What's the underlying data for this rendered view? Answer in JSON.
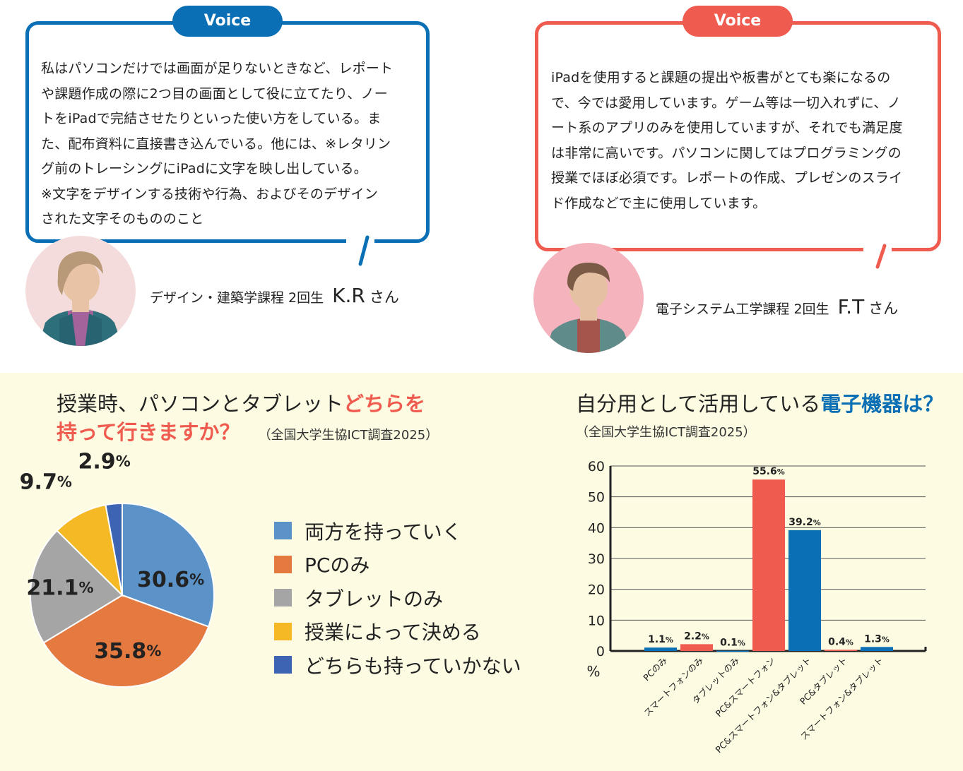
{
  "voices": [
    {
      "badge": "Voice",
      "accent": "#0a6fb4",
      "lines": [
        "私はパソコンだけでは画面が足りないときなど、レポート",
        "や課題作成の際に2つ目の画面として役に立てたり、ノー",
        "トをiPadで完結させたりといった使い方をしている。ま",
        "た、配布資料に直接書き込んでいる。他には、※レタリン",
        "グ前のトレーシングにiPadに文字を映し出している。",
        "※文字をデザインする技術や行為、およびそのデザイン",
        "された文字そのもののこと"
      ],
      "course": "デザイン・建築学課程 2回生",
      "name": "K.R",
      "honorific": "さん"
    },
    {
      "badge": "Voice",
      "accent": "#ef5b4f",
      "lines": [
        "iPadを使用すると課題の提出や板書がとても楽になるの",
        "で、今では愛用しています。ゲーム等は一切入れずに、ノ",
        "ート系のアプリのみを使用していますが、それでも満足度",
        "は非常に高いです。パソコンに関してはプログラミングの",
        "授業でほぼ必須です。レポートの作成、プレゼンのスライ",
        "ド作成などで主に使用しています。"
      ],
      "course": "電子システム工学課程 2回生",
      "name": "F.T",
      "honorific": "さん"
    }
  ],
  "pie_title": {
    "part1": "授業時、パソコンとタブレット",
    "highlight1": "どちらを",
    "highlight2": "持って行きますか？",
    "source": "（全国大学生協ICT調査2025）"
  },
  "bar_title": {
    "part1": "自分用として活用している",
    "highlight": "電子機器は？",
    "source": "（全国大学生協ICT調査2025）"
  },
  "chart_data": [
    {
      "type": "pie",
      "categories": [
        "両方を持っていく",
        "PCのみ",
        "タブレットのみ",
        "授業によって決める",
        "どちらも持っていかない"
      ],
      "values": [
        30.6,
        35.8,
        21.1,
        9.7,
        2.9
      ],
      "value_labels": [
        "30.6",
        "35.8",
        "21.1",
        "9.7",
        "2.9"
      ],
      "unit": "%",
      "colors": [
        "#5b93c9",
        "#e57a40",
        "#a5a5a5",
        "#f6b926",
        "#3d63b3"
      ],
      "legend": "right",
      "start": "12 o'clock, clockwise"
    },
    {
      "type": "bar",
      "categories": [
        "PCのみ",
        "スマートフォンのみ",
        "タブレットのみ",
        "PC&スマートフォン",
        "PC&スマートフォン&タブレット",
        "PC&タブレット",
        "スマートフォン&タブレット"
      ],
      "values": [
        1.1,
        2.2,
        0.1,
        55.6,
        39.2,
        0.4,
        1.3
      ],
      "value_labels": [
        "1.1",
        "2.2",
        "0.1",
        "55.6",
        "39.2",
        "0.4",
        "1.3"
      ],
      "unit": "%",
      "ylabel": "%",
      "ylim": [
        0,
        60
      ],
      "yticks": [
        0,
        10,
        20,
        30,
        40,
        50,
        60
      ],
      "colors": [
        "#0a6fb4",
        "#ef5b4f",
        "#0a6fb4",
        "#ef5b4f",
        "#0a6fb4",
        "#ef5b4f",
        "#0a6fb4"
      ],
      "grid": true
    }
  ]
}
